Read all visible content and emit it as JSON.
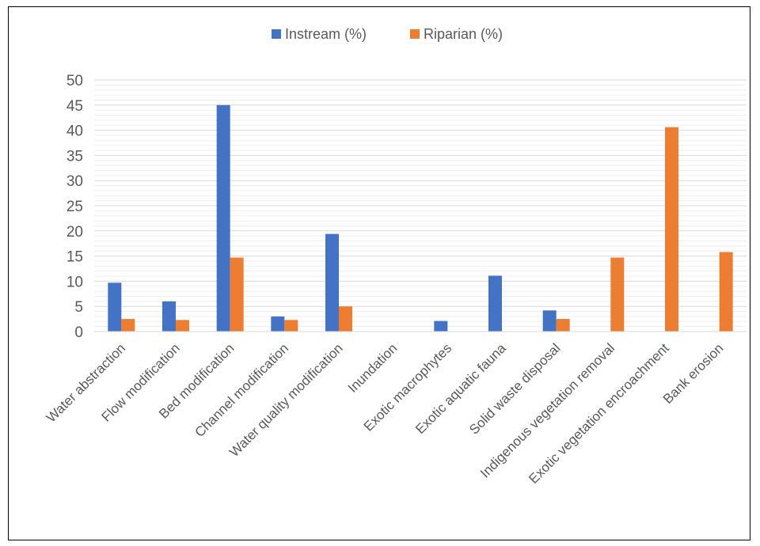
{
  "chart_data": {
    "type": "bar",
    "categories": [
      "Water abstraction",
      "Flow modification",
      "Bed modification",
      "Channel modification",
      "Water quality modification",
      "Inundation",
      "Exotic macrophytes",
      "Exotic aquatic fauna",
      "Solid waste disposal",
      "Indigenous vegetation removal",
      "Exotic vegetation encroachment",
      "Bank erosion"
    ],
    "series": [
      {
        "name": "Instream (%)",
        "color": "#4472C4",
        "values": [
          9.7,
          6.0,
          45.0,
          3.0,
          19.4,
          0,
          2.1,
          11.1,
          4.2,
          0,
          0,
          0
        ]
      },
      {
        "name": "Riparian (%)",
        "color": "#ED7D31",
        "values": [
          2.5,
          2.3,
          14.7,
          2.3,
          5.0,
          0,
          0,
          0,
          2.5,
          14.7,
          40.6,
          15.8
        ]
      }
    ],
    "yticks": [
      0,
      5,
      10,
      15,
      20,
      25,
      30,
      35,
      40,
      45,
      50
    ],
    "ylim": [
      0,
      50
    ],
    "title": "",
    "xlabel": "",
    "ylabel": "",
    "grid": true,
    "legend": "top-center"
  }
}
